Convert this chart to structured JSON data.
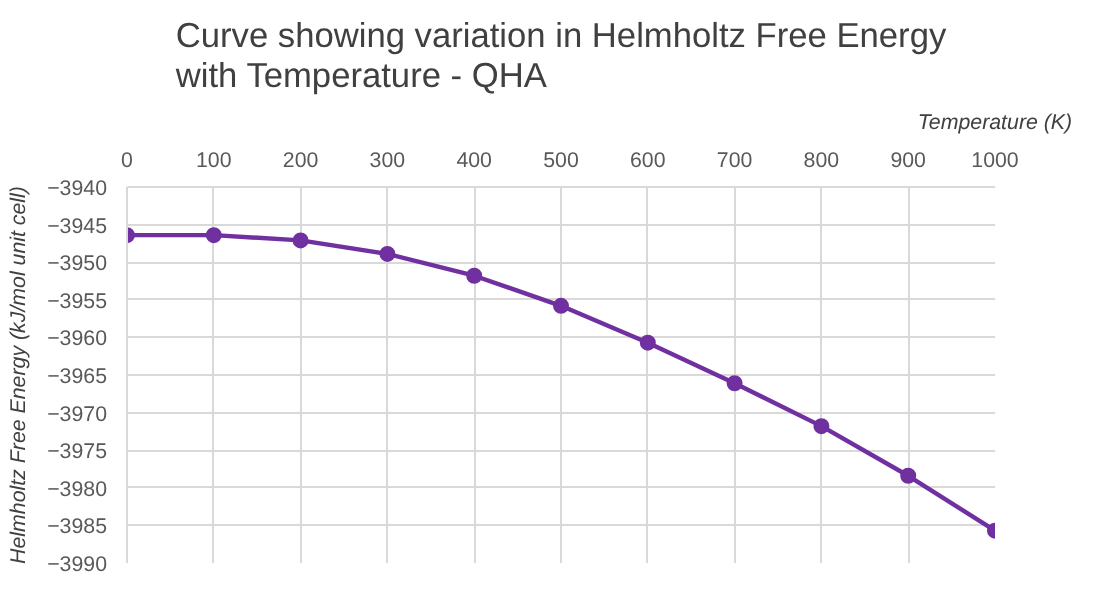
{
  "chart_data": {
    "type": "line",
    "title": "Curve showing variation in Helmholtz Free Energy with Temperature - QHA",
    "xlabel": "Temperature (K)",
    "ylabel": "Helmholtz Free Energy (kJ/mol unit cell)",
    "x": [
      0,
      100,
      200,
      300,
      400,
      500,
      600,
      700,
      800,
      900,
      1000
    ],
    "series": [
      {
        "color": "#7030a0",
        "values": [
          -3946.4,
          -3946.4,
          -3947.1,
          -3948.9,
          -3951.8,
          -3955.8,
          -3960.7,
          -3966.1,
          -3971.8,
          -3978.4,
          -3985.7
        ]
      }
    ],
    "xlim": [
      0,
      1000
    ],
    "xticks": [
      0,
      100,
      200,
      300,
      400,
      500,
      600,
      700,
      800,
      900,
      1000
    ],
    "ylim": [
      -3990,
      -3940
    ],
    "yticks": [
      -3990,
      -3985,
      -3980,
      -3975,
      -3970,
      -3965,
      -3960,
      -3955,
      -3950,
      -3945,
      -3940
    ],
    "grid": true,
    "marker": "circle",
    "line_style": "solid"
  }
}
